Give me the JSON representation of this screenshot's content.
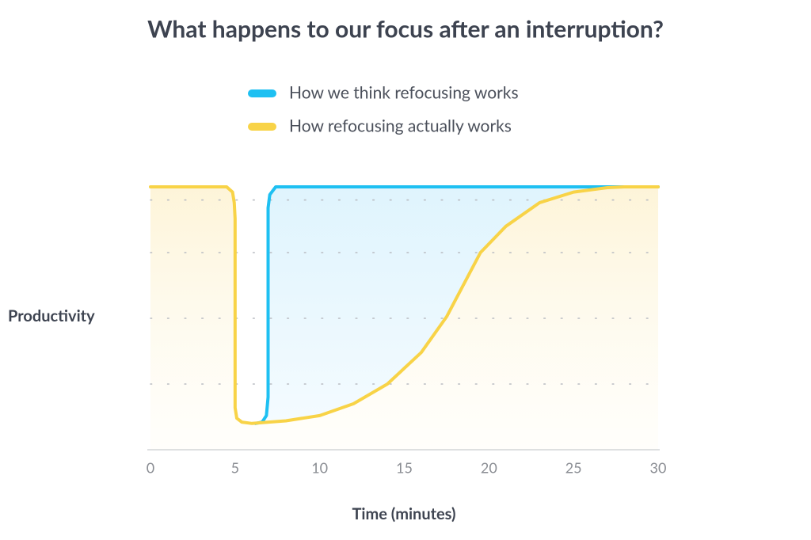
{
  "chart_data": {
    "type": "line",
    "title": "What happens to our focus after an interruption?",
    "x_label": "Time (minutes)",
    "y_label": "Productivity",
    "xlim": [
      0,
      30
    ],
    "xticks": [
      0,
      5,
      10,
      15,
      20,
      25,
      30
    ],
    "ylim": [
      0,
      100
    ],
    "yticks": [
      25,
      50,
      75,
      95
    ],
    "grid": true,
    "legend": "top",
    "series": [
      {
        "name": "How we think refocusing works",
        "color": "#1ec0f2",
        "x": [
          6.2,
          6.6,
          6.85,
          6.95,
          6.95,
          7.05,
          7.4,
          30
        ],
        "values": [
          10,
          10.5,
          13,
          20,
          92,
          97,
          100,
          100
        ]
      },
      {
        "name": "How refocusing actually works",
        "color": "#f8d347",
        "x": [
          0,
          4.5,
          4.85,
          4.95,
          5,
          5,
          5.1,
          5.4,
          6,
          8,
          10,
          12,
          14,
          16,
          17.5,
          19.5,
          21,
          23,
          25,
          27,
          28,
          30
        ],
        "values": [
          100,
          100,
          98,
          94,
          88,
          16,
          12,
          10.5,
          10,
          11,
          13,
          17.5,
          25,
          37,
          50.6,
          75,
          85,
          94,
          98,
          99.7,
          100,
          100
        ]
      }
    ]
  }
}
